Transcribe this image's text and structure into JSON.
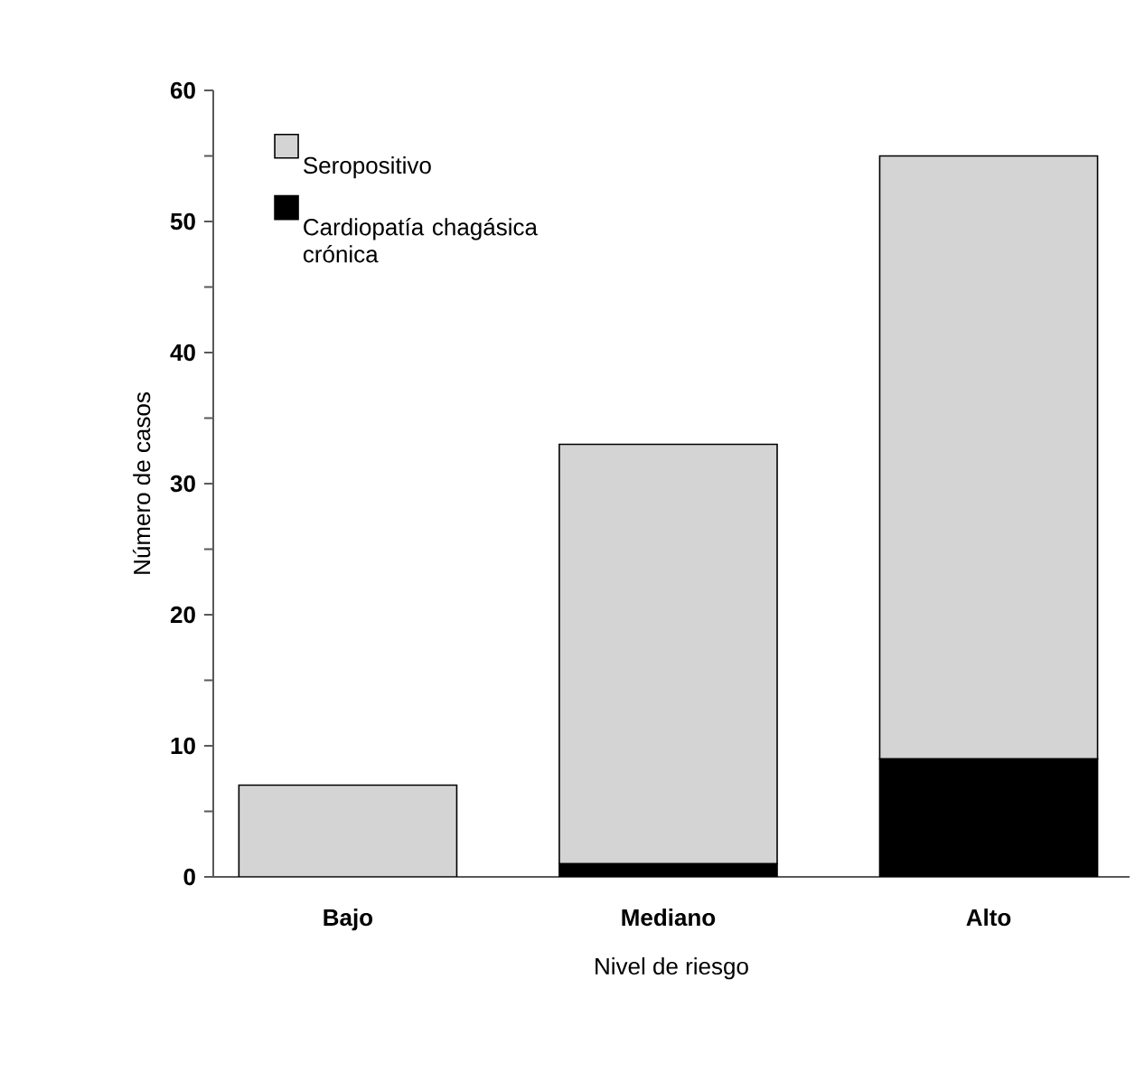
{
  "chart_data": {
    "type": "bar",
    "stacked": true,
    "xlabel": "Nivel de riesgo",
    "ylabel": "Número de casos",
    "categories": [
      "Bajo",
      "Mediano",
      "Alto"
    ],
    "series": [
      {
        "name": "Cardiopatía chagásica crónica",
        "color": "#000000",
        "values": [
          0,
          1,
          9
        ]
      },
      {
        "name": "Seropositivo",
        "color": "#d4d4d4",
        "values": [
          7,
          32,
          46
        ]
      }
    ],
    "ylim": [
      0,
      60
    ],
    "yticks": [
      0,
      {
        "value": 5,
        "label": null
      },
      10,
      {
        "value": 15,
        "label": null
      },
      20,
      {
        "value": 25,
        "label": null
      },
      30,
      {
        "value": 35,
        "label": null
      },
      40,
      {
        "value": 45,
        "label": null
      },
      50,
      {
        "value": 55,
        "label": null
      },
      60
    ],
    "grid": false,
    "legend": "top left"
  }
}
